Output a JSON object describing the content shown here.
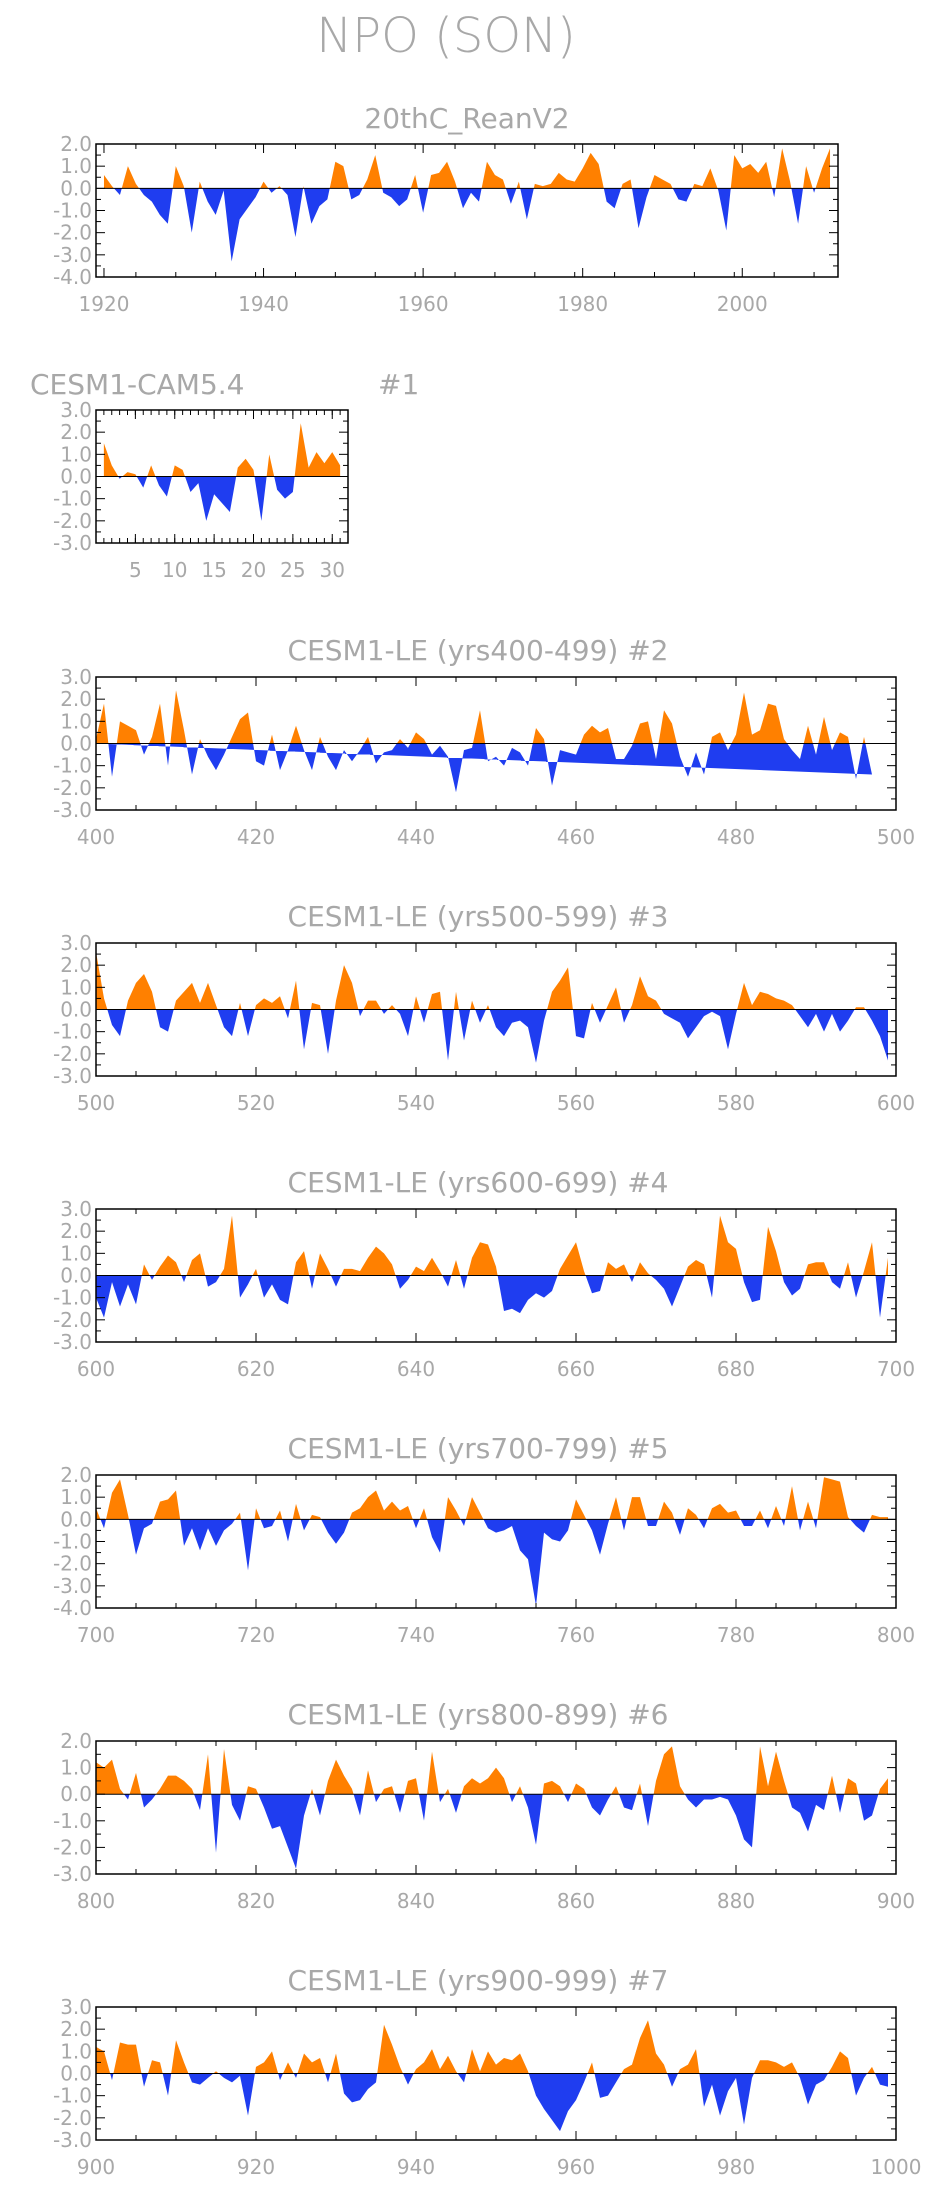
{
  "figure": {
    "title": "NPO (SON)",
    "colors": {
      "positive": "#ff8000",
      "negative": "#1f3df0",
      "frame": "#000000",
      "text": "#a8a8a8"
    }
  },
  "chart_data": [
    {
      "type": "area",
      "title": "20thC_ReanV2",
      "label": "",
      "x": [
        1920,
        1921,
        1922,
        1923,
        1924,
        1925,
        1926,
        1927,
        1928,
        1929,
        1930,
        1931,
        1932,
        1933,
        1934,
        1935,
        1936,
        1937,
        1938,
        1939,
        1940,
        1941,
        1942,
        1943,
        1944,
        1945,
        1946,
        1947,
        1948,
        1949,
        1950,
        1951,
        1952,
        1953,
        1954,
        1955,
        1956,
        1957,
        1958,
        1959,
        1960,
        1961,
        1962,
        1963,
        1964,
        1965,
        1966,
        1967,
        1968,
        1969,
        1970,
        1971,
        1972,
        1973,
        1974,
        1975,
        1976,
        1977,
        1978,
        1979,
        1980,
        1981,
        1982,
        1983,
        1984,
        1985,
        1986,
        1987,
        1988,
        1989,
        1990,
        1991,
        1992,
        1993,
        1994,
        1995,
        1996,
        1997,
        1998,
        1999,
        2000,
        2001,
        2002,
        2003,
        2004,
        2005,
        2006,
        2007,
        2008,
        2009,
        2010,
        2011
      ],
      "values": [
        0.6,
        0.1,
        -0.3,
        1.0,
        0.2,
        -0.3,
        -0.6,
        -1.2,
        -1.6,
        1.0,
        0.1,
        -2.0,
        0.3,
        -0.6,
        -1.2,
        -0.1,
        -3.3,
        -1.4,
        -0.9,
        -0.4,
        0.3,
        -0.2,
        0.1,
        -0.3,
        -2.2,
        0.1,
        -1.6,
        -0.8,
        -0.5,
        1.2,
        1.0,
        -0.5,
        -0.3,
        0.4,
        1.5,
        -0.2,
        -0.4,
        -0.8,
        -0.5,
        0.6,
        -1.1,
        0.6,
        0.7,
        1.2,
        0.3,
        -0.9,
        -0.2,
        -0.6,
        1.2,
        0.6,
        0.4,
        -0.7,
        0.3,
        -1.4,
        0.2,
        0.1,
        0.2,
        0.7,
        0.4,
        0.3,
        0.9,
        1.6,
        1.1,
        -0.6,
        -0.9,
        0.2,
        0.4,
        -1.8,
        -0.4,
        0.6,
        0.4,
        0.2,
        -0.5,
        -0.6,
        0.2,
        0.1,
        0.9,
        -0.1,
        -1.9,
        1.5,
        0.9,
        1.1,
        0.7,
        1.2,
        -0.4,
        1.8,
        0.3,
        -1.6,
        1.0,
        -0.2,
        0.9,
        1.8
      ],
      "xlim": [
        1919,
        2012
      ],
      "ylim": [
        -4.0,
        2.0
      ],
      "xticks": [
        "1920",
        "1940",
        "1960",
        "1980",
        "2000"
      ],
      "yticks": [
        "2.0",
        "1.0",
        "0.0",
        "-1.0",
        "-2.0",
        "-3.0",
        "-4.0"
      ]
    },
    {
      "type": "area",
      "title": "CESM1-CAM5.4",
      "label": "#1",
      "x": [
        1,
        2,
        3,
        4,
        5,
        6,
        7,
        8,
        9,
        10,
        11,
        12,
        13,
        14,
        15,
        16,
        17,
        18,
        19,
        20,
        21,
        22,
        23,
        24,
        25,
        26,
        27,
        28,
        29,
        30,
        31
      ],
      "values": [
        1.5,
        0.5,
        -0.1,
        0.2,
        0.1,
        -0.5,
        0.5,
        -0.4,
        -0.9,
        0.5,
        0.3,
        -0.7,
        -0.3,
        -2.0,
        -0.8,
        -1.2,
        -1.6,
        0.4,
        0.8,
        0.3,
        -2.0,
        1.0,
        -0.6,
        -1.0,
        -0.7,
        2.4,
        0.4,
        1.1,
        0.6,
        1.1,
        0.5
      ],
      "xlim": [
        0,
        32
      ],
      "ylim": [
        -3.0,
        3.0
      ],
      "xticks": [
        "5",
        "10",
        "15",
        "20",
        "25",
        "30"
      ],
      "yticks": [
        "3.0",
        "2.0",
        "1.0",
        "0.0",
        "-1.0",
        "-2.0",
        "-3.0"
      ]
    },
    {
      "type": "area",
      "title": "CESM1-LE (yrs400-499)",
      "label": "#2",
      "x_start": 400,
      "x_end": 499,
      "values": [
        0.2,
        1.8,
        -1.5,
        1.0,
        0.8,
        0.6,
        -0.5,
        0.3,
        1.8,
        -1.0,
        2.4,
        0.6,
        -1.4,
        0.2,
        -0.6,
        -1.2,
        -0.5,
        0.3,
        1.1,
        1.4,
        -0.8,
        -1.0,
        0.4,
        -1.2,
        -0.3,
        0.8,
        -0.3,
        -1.2,
        0.3,
        -0.6,
        -1.2,
        -0.3,
        -0.8,
        -0.3,
        0.3,
        -0.9,
        -0.4,
        -0.3,
        0.2,
        -0.2,
        0.5,
        0.2,
        -0.5,
        -0.1,
        -0.6,
        -2.2,
        -0.3,
        -0.2,
        1.5,
        -0.8,
        -0.6,
        -1.0,
        -0.2,
        -0.4,
        -1.0,
        0.7,
        0.2,
        -1.9,
        -0.3,
        -0.4,
        -0.5,
        0.4,
        0.8,
        0.5,
        0.7,
        -0.7,
        -0.7,
        -0.1,
        0.9,
        1.0,
        -0.7,
        1.5,
        0.9,
        -0.6,
        -1.5,
        -0.4,
        -1.4,
        0.3,
        0.5,
        -0.3,
        0.4,
        2.3,
        0.4,
        0.6,
        1.8,
        1.7,
        0.2,
        -0.3,
        -0.7,
        0.8,
        -0.5,
        1.2,
        -0.3,
        0.5,
        0.3,
        -1.6,
        0.3,
        -1.4
      ],
      "xlim": [
        400,
        500
      ],
      "ylim": [
        -3.0,
        3.0
      ],
      "xticks": [
        "400",
        "420",
        "440",
        "460",
        "480",
        "500"
      ],
      "yticks": [
        "3.0",
        "2.0",
        "1.0",
        "0.0",
        "-1.0",
        "-2.0",
        "-3.0"
      ]
    },
    {
      "type": "area",
      "title": "CESM1-LE (yrs500-599)",
      "label": "#3",
      "x_start": 500,
      "x_end": 599,
      "values": [
        2.6,
        0.5,
        -0.7,
        -1.2,
        0.4,
        1.2,
        1.6,
        0.8,
        -0.8,
        -1.0,
        0.4,
        0.8,
        1.2,
        0.3,
        1.2,
        0.2,
        -0.8,
        -1.2,
        0.3,
        -1.2,
        0.2,
        0.5,
        0.3,
        0.6,
        -0.4,
        1.3,
        -1.8,
        0.3,
        0.2,
        -2.0,
        0.4,
        2.0,
        1.2,
        -0.3,
        0.4,
        0.4,
        -0.2,
        0.2,
        -0.2,
        -1.2,
        0.6,
        -0.6,
        0.7,
        0.8,
        -2.3,
        0.8,
        -1.4,
        0.4,
        -0.6,
        0.2,
        -0.8,
        -1.2,
        -0.6,
        -0.5,
        -0.8,
        -2.4,
        -0.5,
        0.8,
        1.3,
        1.9,
        -1.2,
        -1.3,
        0.3,
        -0.6,
        0.2,
        1.0,
        -0.6,
        0.2,
        1.5,
        0.6,
        0.4,
        -0.2,
        -0.4,
        -0.6,
        -1.3,
        -0.8,
        -0.3,
        -0.1,
        -0.3,
        -1.8,
        -0.2,
        1.2,
        0.2,
        0.8,
        0.7,
        0.5,
        0.4,
        0.2,
        -0.3,
        -0.8,
        -0.2,
        -1.0,
        -0.2,
        -1.0,
        -0.5,
        0.1,
        0.1,
        -0.5,
        -1.2,
        -2.3
      ],
      "xlim": [
        500,
        600
      ],
      "ylim": [
        -3.0,
        3.0
      ],
      "xticks": [
        "500",
        "520",
        "540",
        "560",
        "580",
        "600"
      ],
      "yticks": [
        "3.0",
        "2.0",
        "1.0",
        "0.0",
        "-1.0",
        "-2.0",
        "-3.0"
      ]
    },
    {
      "type": "area",
      "title": "CESM1-LE (yrs600-699)",
      "label": "#4",
      "x_start": 600,
      "x_end": 699,
      "values": [
        -1.0,
        -1.9,
        -0.3,
        -1.4,
        -0.4,
        -1.3,
        0.5,
        -0.2,
        0.4,
        0.9,
        0.6,
        -0.3,
        0.7,
        1.0,
        -0.5,
        -0.3,
        0.3,
        2.7,
        -1.0,
        -0.4,
        0.3,
        -1.0,
        -0.4,
        -1.1,
        -1.3,
        0.6,
        1.1,
        -0.6,
        1.0,
        0.3,
        -0.5,
        0.3,
        0.3,
        0.2,
        0.8,
        1.3,
        1.0,
        0.5,
        -0.6,
        -0.2,
        0.4,
        0.2,
        0.8,
        0.2,
        -0.5,
        0.7,
        -0.6,
        0.8,
        1.5,
        1.4,
        0.4,
        -1.6,
        -1.5,
        -1.7,
        -1.1,
        -0.8,
        -1.0,
        -0.7,
        0.3,
        0.9,
        1.5,
        0.2,
        -0.8,
        -0.7,
        0.6,
        0.3,
        0.5,
        -0.3,
        0.6,
        0.1,
        -0.2,
        -0.6,
        -1.4,
        -0.5,
        0.4,
        0.7,
        0.5,
        -1.0,
        2.7,
        1.5,
        1.2,
        -0.3,
        -1.2,
        -1.1,
        2.2,
        1.1,
        -0.3,
        -0.9,
        -0.6,
        0.5,
        0.6,
        0.6,
        -0.3,
        -0.6,
        0.6,
        -1.0,
        0.2,
        1.5,
        -1.9,
        0.8
      ],
      "xlim": [
        600,
        700
      ],
      "ylim": [
        -3.0,
        3.0
      ],
      "xticks": [
        "600",
        "620",
        "640",
        "660",
        "680",
        "700"
      ],
      "yticks": [
        "3.0",
        "2.0",
        "1.0",
        "0.0",
        "-1.0",
        "-2.0",
        "-3.0"
      ]
    },
    {
      "type": "area",
      "title": "CESM1-LE (yrs700-799)",
      "label": "#5",
      "x_start": 700,
      "x_end": 799,
      "values": [
        0.5,
        -0.4,
        1.2,
        1.8,
        0.2,
        -1.6,
        -0.4,
        -0.2,
        0.8,
        0.9,
        1.3,
        -1.2,
        -0.4,
        -1.4,
        -0.4,
        -1.2,
        -0.5,
        -0.2,
        0.3,
        -2.3,
        0.5,
        -0.4,
        -0.3,
        0.4,
        -1.0,
        0.7,
        -0.5,
        0.2,
        0.1,
        -0.6,
        -1.1,
        -0.6,
        0.3,
        0.5,
        1.0,
        1.3,
        0.4,
        0.8,
        0.4,
        0.6,
        -0.4,
        0.5,
        -0.8,
        -1.5,
        1.0,
        0.4,
        -0.3,
        1.0,
        0.3,
        -0.4,
        -0.6,
        -0.5,
        -0.3,
        -1.4,
        -1.8,
        -3.9,
        -0.6,
        -0.9,
        -1.0,
        -0.5,
        0.9,
        0.2,
        -0.5,
        -1.6,
        -0.2,
        1.0,
        -0.5,
        1.0,
        1.0,
        -0.3,
        -0.3,
        0.8,
        0.3,
        -0.7,
        0.5,
        0.2,
        -0.4,
        0.5,
        0.7,
        0.3,
        0.4,
        -0.3,
        -0.3,
        0.4,
        -0.4,
        0.6,
        -0.3,
        1.5,
        -0.5,
        0.8,
        -0.4,
        1.9,
        1.8,
        1.7,
        0.1,
        -0.3,
        -0.6,
        0.2,
        0.1,
        0.1
      ],
      "xlim": [
        700,
        800
      ],
      "ylim": [
        -4.0,
        2.0
      ],
      "xticks": [
        "700",
        "720",
        "740",
        "760",
        "780",
        "800"
      ],
      "yticks": [
        "2.0",
        "1.0",
        "0.0",
        "-1.0",
        "-2.0",
        "-3.0",
        "-4.0"
      ]
    },
    {
      "type": "area",
      "title": "CESM1-LE (yrs800-899)",
      "label": "#6",
      "x_start": 800,
      "x_end": 899,
      "values": [
        1.2,
        1.0,
        1.3,
        0.2,
        -0.2,
        0.8,
        -0.5,
        -0.2,
        0.2,
        0.7,
        0.7,
        0.5,
        0.2,
        -0.6,
        1.5,
        -2.2,
        1.7,
        -0.4,
        -1.0,
        0.3,
        0.2,
        -0.5,
        -1.3,
        -1.2,
        -2.0,
        -2.8,
        -0.8,
        0.2,
        -0.8,
        0.5,
        1.3,
        0.7,
        0.2,
        -0.8,
        0.9,
        -0.3,
        0.2,
        0.3,
        -0.7,
        0.5,
        0.6,
        -1.0,
        1.6,
        -0.3,
        0.2,
        -0.7,
        0.3,
        0.6,
        0.4,
        0.6,
        1.0,
        0.6,
        -0.3,
        0.3,
        -0.5,
        -1.9,
        0.4,
        0.5,
        0.3,
        -0.3,
        0.4,
        0.2,
        -0.5,
        -0.8,
        -0.2,
        0.3,
        -0.5,
        -0.6,
        0.4,
        -1.2,
        0.5,
        1.5,
        1.8,
        0.3,
        -0.2,
        -0.5,
        -0.2,
        -0.2,
        -0.1,
        -0.2,
        -0.8,
        -1.7,
        -2.0,
        1.8,
        0.3,
        1.6,
        0.5,
        -0.5,
        -0.7,
        -1.4,
        -0.4,
        -0.6,
        0.7,
        -0.7,
        0.6,
        0.4,
        -1.0,
        -0.8,
        0.2,
        0.6
      ],
      "xlim": [
        800,
        900
      ],
      "ylim": [
        -3.0,
        2.0
      ],
      "xticks": [
        "800",
        "820",
        "840",
        "860",
        "880",
        "900"
      ],
      "yticks": [
        "2.0",
        "1.0",
        "0.0",
        "-1.0",
        "-2.0",
        "-3.0"
      ]
    },
    {
      "type": "area",
      "title": "CESM1-LE (yrs900-999)",
      "label": "#7",
      "x_start": 900,
      "x_end": 999,
      "values": [
        1.2,
        1.0,
        -0.3,
        1.4,
        1.3,
        1.3,
        -0.6,
        0.6,
        0.5,
        -1.0,
        1.5,
        0.5,
        -0.4,
        -0.5,
        -0.2,
        0.1,
        -0.2,
        -0.4,
        -0.1,
        -1.9,
        0.3,
        0.5,
        1.0,
        -0.3,
        0.5,
        -0.2,
        0.9,
        0.5,
        0.7,
        -0.4,
        0.9,
        -0.9,
        -1.3,
        -1.2,
        -0.7,
        -0.4,
        2.2,
        1.3,
        0.3,
        -0.5,
        0.2,
        0.5,
        1.1,
        0.2,
        0.8,
        0.1,
        -0.4,
        1.1,
        0.1,
        1.0,
        0.4,
        0.7,
        0.6,
        0.9,
        0.1,
        -1.0,
        -1.6,
        -2.1,
        -2.6,
        -1.7,
        -1.2,
        -0.4,
        0.5,
        -1.1,
        -1.0,
        -0.4,
        0.2,
        0.4,
        1.6,
        2.4,
        0.9,
        0.4,
        -0.6,
        0.2,
        0.4,
        1.1,
        -1.5,
        -0.5,
        -1.9,
        -0.8,
        -0.2,
        -2.3,
        -0.2,
        0.6,
        0.6,
        0.5,
        0.3,
        0.5,
        -0.2,
        -1.4,
        -0.5,
        -0.3,
        0.3,
        1.0,
        0.7,
        -1.0,
        -0.2,
        0.3,
        -0.5,
        -0.6
      ],
      "xlim": [
        900,
        1000
      ],
      "ylim": [
        -3.0,
        3.0
      ],
      "xticks": [
        "900",
        "920",
        "940",
        "960",
        "980",
        "1000"
      ],
      "yticks": [
        "3.0",
        "2.0",
        "1.0",
        "0.0",
        "-1.0",
        "-2.0",
        "-3.0"
      ]
    }
  ]
}
